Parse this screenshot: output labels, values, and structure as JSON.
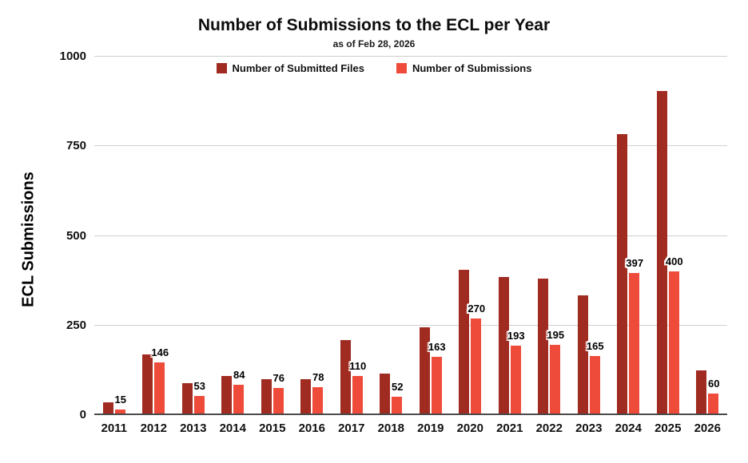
{
  "chart_data": {
    "type": "bar",
    "title": "Number of Submissions to the ECL per Year",
    "subtitle": "as of Feb 28, 2026",
    "xlabel": "",
    "ylabel": "ECL Submissions",
    "ylim": [
      0,
      1000
    ],
    "yticks": [
      0,
      250,
      500,
      750,
      1000
    ],
    "grid": true,
    "legend_position": "top",
    "categories": [
      "2011",
      "2012",
      "2013",
      "2014",
      "2015",
      "2016",
      "2017",
      "2018",
      "2019",
      "2020",
      "2021",
      "2022",
      "2023",
      "2024",
      "2025",
      "2026"
    ],
    "series": [
      {
        "name": "Number of Submitted Files",
        "color": "#a02b20",
        "labels_shown": false,
        "values": [
          35,
          170,
          90,
          110,
          100,
          100,
          210,
          115,
          245,
          405,
          385,
          380,
          335,
          785,
          905,
          125
        ]
      },
      {
        "name": "Number of Submissions",
        "color": "#ef4b3a",
        "labels_shown": true,
        "values": [
          15,
          146,
          53,
          84,
          76,
          78,
          110,
          52,
          163,
          270,
          193,
          195,
          165,
          397,
          400,
          60
        ]
      }
    ]
  }
}
